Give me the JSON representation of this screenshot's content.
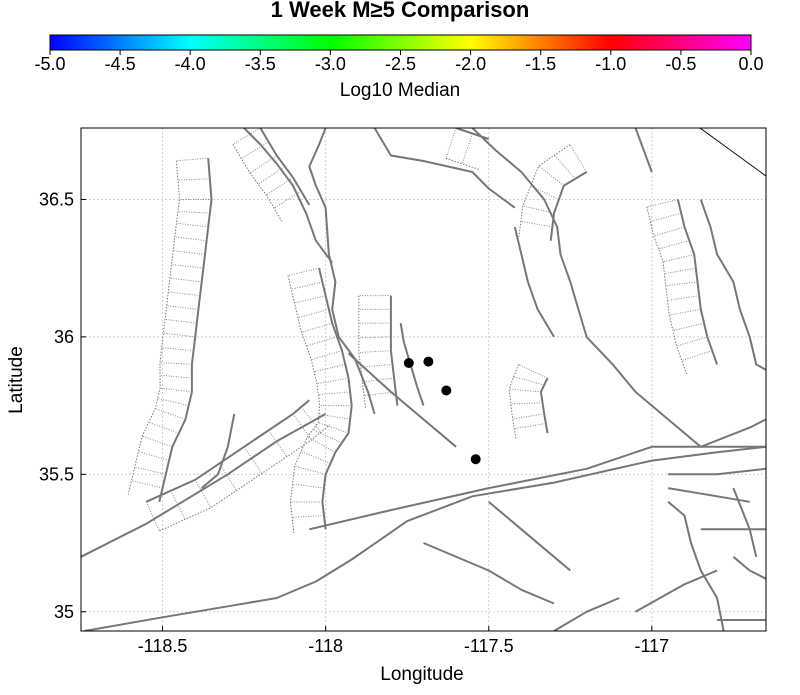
{
  "title": "1 Week M≥5 Comparison",
  "colorbar": {
    "label": "Log10 Median",
    "ticks": [
      "-5.0",
      "-4.5",
      "-4.0",
      "-3.5",
      "-3.0",
      "-2.5",
      "-2.0",
      "-1.5",
      "-1.0",
      "-0.5",
      "0.0"
    ],
    "colors": [
      "#0000ff",
      "#00ffff",
      "#00ff00",
      "#ffff00",
      "#ff0000",
      "#ff00ff"
    ]
  },
  "chart_data": {
    "type": "scatter",
    "title": "1 Week M≥5 Comparison",
    "xlabel": "Longitude",
    "ylabel": "Latitude",
    "xlim": [
      -118.75,
      -116.65
    ],
    "ylim": [
      34.93,
      36.76
    ],
    "x_ticks": [
      "-118.5",
      "-118",
      "-117.5",
      "-117"
    ],
    "x_tick_values": [
      -118.5,
      -118.0,
      -117.5,
      -117.0
    ],
    "y_ticks": [
      "35",
      "35.5",
      "36",
      "36.5"
    ],
    "y_tick_values": [
      35.0,
      35.5,
      36.0,
      36.5
    ],
    "grid": true,
    "points": [
      {
        "x": -117.745,
        "y": 35.905
      },
      {
        "x": -117.685,
        "y": 35.91
      },
      {
        "x": -117.63,
        "y": 35.805
      },
      {
        "x": -117.54,
        "y": 35.555
      }
    ],
    "faults": [
      [
        [
          -118.75,
          35.2
        ],
        [
          -118.55,
          35.32
        ],
        [
          -118.3,
          35.5
        ],
        [
          -118.15,
          35.62
        ],
        [
          -118.03,
          35.7
        ],
        [
          -118.0,
          35.72
        ]
      ],
      [
        [
          -118.74,
          34.93
        ],
        [
          -118.5,
          34.98
        ],
        [
          -118.3,
          35.02
        ],
        [
          -118.15,
          35.05
        ],
        [
          -118.03,
          35.11
        ],
        [
          -117.92,
          35.19
        ],
        [
          -117.75,
          35.33
        ],
        [
          -117.55,
          35.42
        ],
        [
          -117.3,
          35.47
        ],
        [
          -117.0,
          35.55
        ],
        [
          -116.8,
          35.58
        ],
        [
          -116.65,
          35.6
        ]
      ],
      [
        [
          -118.05,
          35.3
        ],
        [
          -117.8,
          35.37
        ],
        [
          -117.5,
          35.45
        ],
        [
          -117.2,
          35.52
        ],
        [
          -117.0,
          35.6
        ],
        [
          -116.65,
          35.6
        ]
      ],
      [
        [
          -118.0,
          36.76
        ],
        [
          -118.02,
          36.7
        ],
        [
          -118.05,
          36.62
        ],
        [
          -118.03,
          36.55
        ],
        [
          -118.0,
          36.47
        ],
        [
          -117.99,
          36.3
        ],
        [
          -117.97,
          36.2
        ],
        [
          -117.98,
          36.1
        ],
        [
          -117.96,
          36.0
        ],
        [
          -117.91,
          35.92
        ],
        [
          -117.87,
          35.8
        ],
        [
          -117.85,
          35.72
        ]
      ],
      [
        [
          -118.25,
          36.76
        ],
        [
          -118.2,
          36.7
        ],
        [
          -118.15,
          36.63
        ],
        [
          -118.1,
          36.55
        ],
        [
          -118.06,
          36.45
        ],
        [
          -118.03,
          36.35
        ],
        [
          -117.98,
          36.27
        ]
      ],
      [
        [
          -117.93,
          35.94
        ],
        [
          -117.8,
          35.8
        ],
        [
          -117.7,
          35.7
        ],
        [
          -117.6,
          35.6
        ]
      ],
      [
        [
          -117.77,
          36.05
        ],
        [
          -117.76,
          35.98
        ],
        [
          -117.74,
          35.9
        ],
        [
          -117.72,
          35.82
        ],
        [
          -117.7,
          35.75
        ]
      ],
      [
        [
          -118.28,
          35.72
        ],
        [
          -118.3,
          35.6
        ],
        [
          -118.33,
          35.5
        ],
        [
          -118.38,
          35.45
        ]
      ],
      [
        [
          -117.85,
          36.76
        ],
        [
          -117.8,
          36.66
        ],
        [
          -117.7,
          36.64
        ],
        [
          -117.55,
          36.6
        ],
        [
          -117.5,
          36.54
        ],
        [
          -117.42,
          36.47
        ]
      ],
      [
        [
          -117.55,
          36.76
        ],
        [
          -117.48,
          36.68
        ],
        [
          -117.4,
          36.6
        ],
        [
          -117.33,
          36.5
        ],
        [
          -117.29,
          36.4
        ],
        [
          -117.28,
          36.3
        ],
        [
          -117.25,
          36.2
        ],
        [
          -117.23,
          36.12
        ],
        [
          -117.2,
          36.0
        ],
        [
          -117.12,
          35.9
        ],
        [
          -117.05,
          35.8
        ],
        [
          -116.95,
          35.7
        ],
        [
          -116.85,
          35.6
        ]
      ],
      [
        [
          -117.42,
          36.4
        ],
        [
          -117.4,
          36.3
        ],
        [
          -117.38,
          36.2
        ],
        [
          -117.35,
          36.1
        ],
        [
          -117.3,
          36.0
        ]
      ],
      [
        [
          -117.05,
          36.76
        ],
        [
          -117.0,
          36.6
        ]
      ],
      [
        [
          -116.85,
          35.6
        ],
        [
          -116.7,
          35.67
        ],
        [
          -116.65,
          35.7
        ]
      ],
      [
        [
          -116.85,
          36.5
        ],
        [
          -116.82,
          36.4
        ],
        [
          -116.8,
          36.3
        ],
        [
          -116.75,
          36.2
        ],
        [
          -116.73,
          36.1
        ],
        [
          -116.7,
          36.0
        ],
        [
          -116.68,
          35.9
        ],
        [
          -116.65,
          35.88
        ]
      ],
      [
        [
          -117.5,
          35.4
        ],
        [
          -117.4,
          35.3
        ],
        [
          -117.3,
          35.2
        ],
        [
          -117.25,
          35.15
        ]
      ],
      [
        [
          -117.7,
          35.25
        ],
        [
          -117.5,
          35.15
        ],
        [
          -117.4,
          35.08
        ],
        [
          -117.3,
          35.03
        ]
      ],
      [
        [
          -117.3,
          34.93
        ],
        [
          -117.2,
          35.0
        ],
        [
          -117.1,
          35.05
        ]
      ],
      [
        [
          -117.05,
          35.0
        ],
        [
          -116.9,
          35.1
        ],
        [
          -116.8,
          35.15
        ]
      ],
      [
        [
          -116.95,
          35.5
        ],
        [
          -116.8,
          35.5
        ],
        [
          -116.65,
          35.52
        ]
      ],
      [
        [
          -116.95,
          35.45
        ],
        [
          -116.8,
          35.42
        ],
        [
          -116.7,
          35.4
        ]
      ],
      [
        [
          -116.95,
          35.4
        ],
        [
          -116.9,
          35.35
        ],
        [
          -116.88,
          35.25
        ],
        [
          -116.85,
          35.15
        ],
        [
          -116.8,
          35.05
        ],
        [
          -116.78,
          34.93
        ]
      ],
      [
        [
          -116.85,
          35.3
        ],
        [
          -116.7,
          35.3
        ],
        [
          -116.65,
          35.3
        ]
      ],
      [
        [
          -116.75,
          35.2
        ],
        [
          -116.7,
          35.15
        ],
        [
          -116.65,
          35.12
        ]
      ],
      [
        [
          -116.75,
          35.45
        ],
        [
          -116.7,
          35.3
        ],
        [
          -116.68,
          35.2
        ]
      ],
      [
        [
          -116.8,
          34.97
        ],
        [
          -116.7,
          34.97
        ],
        [
          -116.65,
          34.97
        ]
      ]
    ],
    "shaded_faults": [
      [
        [
          -118.36,
          36.65
        ],
        [
          -118.35,
          36.5
        ],
        [
          -118.36,
          36.4
        ],
        [
          -118.37,
          36.3
        ],
        [
          -118.38,
          36.2
        ],
        [
          -118.39,
          36.1
        ],
        [
          -118.4,
          36.0
        ],
        [
          -118.41,
          35.9
        ],
        [
          -118.41,
          35.8
        ],
        [
          -118.43,
          35.7
        ],
        [
          -118.47,
          35.6
        ],
        [
          -118.49,
          35.5
        ],
        [
          -118.51,
          35.4
        ]
      ],
      [
        [
          -118.2,
          36.76
        ],
        [
          -118.15,
          36.66
        ],
        [
          -118.1,
          36.58
        ],
        [
          -118.05,
          36.48
        ]
      ],
      [
        [
          -118.02,
          36.25
        ],
        [
          -118.0,
          36.15
        ],
        [
          -117.98,
          36.05
        ],
        [
          -117.95,
          35.95
        ],
        [
          -117.93,
          35.85
        ],
        [
          -117.92,
          35.75
        ],
        [
          -117.93,
          35.65
        ],
        [
          -117.97,
          35.58
        ],
        [
          -118.0,
          35.5
        ],
        [
          -118.01,
          35.4
        ],
        [
          -118.0,
          35.3
        ]
      ],
      [
        [
          -117.8,
          36.15
        ],
        [
          -117.8,
          36.05
        ],
        [
          -117.8,
          35.95
        ],
        [
          -117.79,
          35.85
        ],
        [
          -117.78,
          35.75
        ]
      ],
      [
        [
          -117.2,
          36.6
        ],
        [
          -117.27,
          36.55
        ],
        [
          -117.3,
          36.45
        ],
        [
          -117.31,
          36.35
        ]
      ],
      [
        [
          -117.32,
          35.85
        ],
        [
          -117.34,
          35.8
        ],
        [
          -117.33,
          35.72
        ],
        [
          -117.32,
          35.65
        ]
      ],
      [
        [
          -116.92,
          36.5
        ],
        [
          -116.9,
          36.4
        ],
        [
          -116.87,
          36.3
        ],
        [
          -116.86,
          36.2
        ],
        [
          -116.85,
          36.1
        ],
        [
          -116.83,
          36.0
        ],
        [
          -116.8,
          35.9
        ]
      ],
      [
        [
          -118.55,
          35.4
        ],
        [
          -118.4,
          35.48
        ],
        [
          -118.25,
          35.6
        ],
        [
          -118.1,
          35.72
        ],
        [
          -118.05,
          35.77
        ]
      ],
      [
        [
          -117.6,
          36.76
        ],
        [
          -117.5,
          36.72
        ]
      ]
    ]
  }
}
